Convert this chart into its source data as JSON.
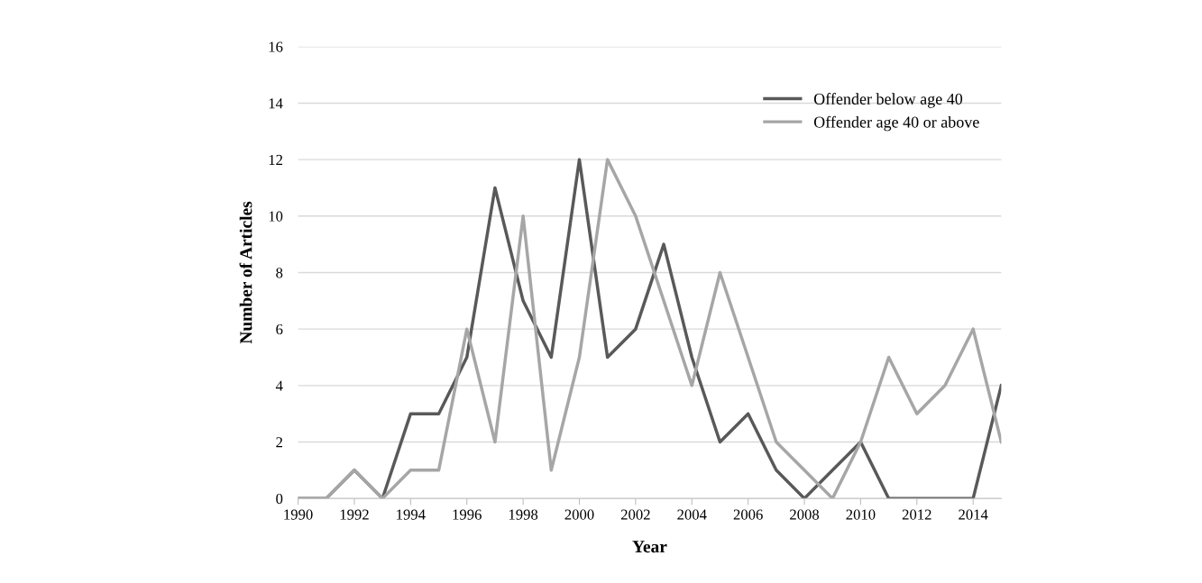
{
  "chart_data": {
    "type": "line",
    "xlabel": "Year",
    "ylabel": "Number of Articles",
    "x": [
      1990,
      1991,
      1992,
      1993,
      1994,
      1995,
      1996,
      1997,
      1998,
      1999,
      2000,
      2001,
      2002,
      2003,
      2004,
      2005,
      2006,
      2007,
      2008,
      2009,
      2010,
      2011,
      2012,
      2013,
      2014,
      2015
    ],
    "series": [
      {
        "name": "Offender below age 40",
        "color": "#595959",
        "values": [
          0,
          0,
          1,
          0,
          3,
          3,
          5,
          11,
          7,
          5,
          12,
          5,
          6,
          9,
          5,
          2,
          3,
          1,
          0,
          1,
          2,
          0,
          0,
          0,
          0,
          4
        ]
      },
      {
        "name": "Offender age 40 or above",
        "color": "#a6a6a6",
        "values": [
          0,
          0,
          1,
          0,
          1,
          1,
          6,
          2,
          10,
          1,
          5,
          12,
          10,
          7,
          4,
          8,
          5,
          2,
          1,
          0,
          2,
          5,
          3,
          4,
          6,
          2
        ]
      }
    ],
    "xlim": [
      1990,
      2015
    ],
    "xticks": [
      1990,
      1992,
      1994,
      1996,
      1998,
      2000,
      2002,
      2004,
      2006,
      2008,
      2010,
      2012,
      2014
    ],
    "ylim": [
      0,
      16
    ],
    "yticks": [
      0,
      2,
      4,
      6,
      8,
      10,
      12,
      14,
      16
    ],
    "grid": "y",
    "legend": "top right",
    "marker": "none",
    "line_style": "solid"
  }
}
